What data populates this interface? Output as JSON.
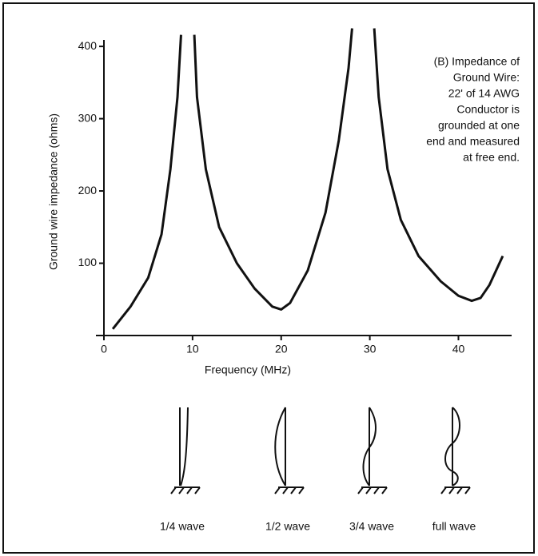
{
  "chart_data": {
    "type": "line",
    "xlabel": "Frequency (MHz)",
    "ylabel": "Ground wire impedance (ohms)",
    "annotation": [
      "(B) Impedance of",
      "Ground Wire:",
      "22' of 14 AWG",
      "Conductor is",
      "grounded at one",
      "end and measured",
      "at free end."
    ],
    "x": [
      1,
      3,
      5,
      6.5,
      7.5,
      8.3,
      8.7,
      null,
      10.2,
      10.5,
      11.5,
      13,
      15,
      17,
      19,
      20,
      21,
      23,
      25,
      26.5,
      27.6,
      28,
      null,
      30.5,
      31,
      32,
      33.5,
      35.5,
      38,
      40,
      41.5,
      42.5,
      43.5,
      45
    ],
    "series": [
      {
        "color": "#111111",
        "values": [
          9,
          40,
          80,
          140,
          230,
          330,
          416,
          null,
          416,
          330,
          230,
          150,
          100,
          65,
          40,
          36,
          45,
          90,
          170,
          270,
          370,
          425,
          null,
          425,
          330,
          230,
          160,
          110,
          75,
          55,
          48,
          52,
          70,
          110
        ]
      }
    ],
    "xlim": [
      0,
      46
    ],
    "ylim": [
      0,
      420
    ],
    "xticks": [
      0,
      10,
      20,
      30,
      40
    ],
    "yticks": [
      100,
      200,
      300,
      400
    ],
    "grid": false
  },
  "diagrams": {
    "labels": [
      "1/4 wave",
      "1/2 wave",
      "3/4 wave",
      "full wave"
    ]
  }
}
